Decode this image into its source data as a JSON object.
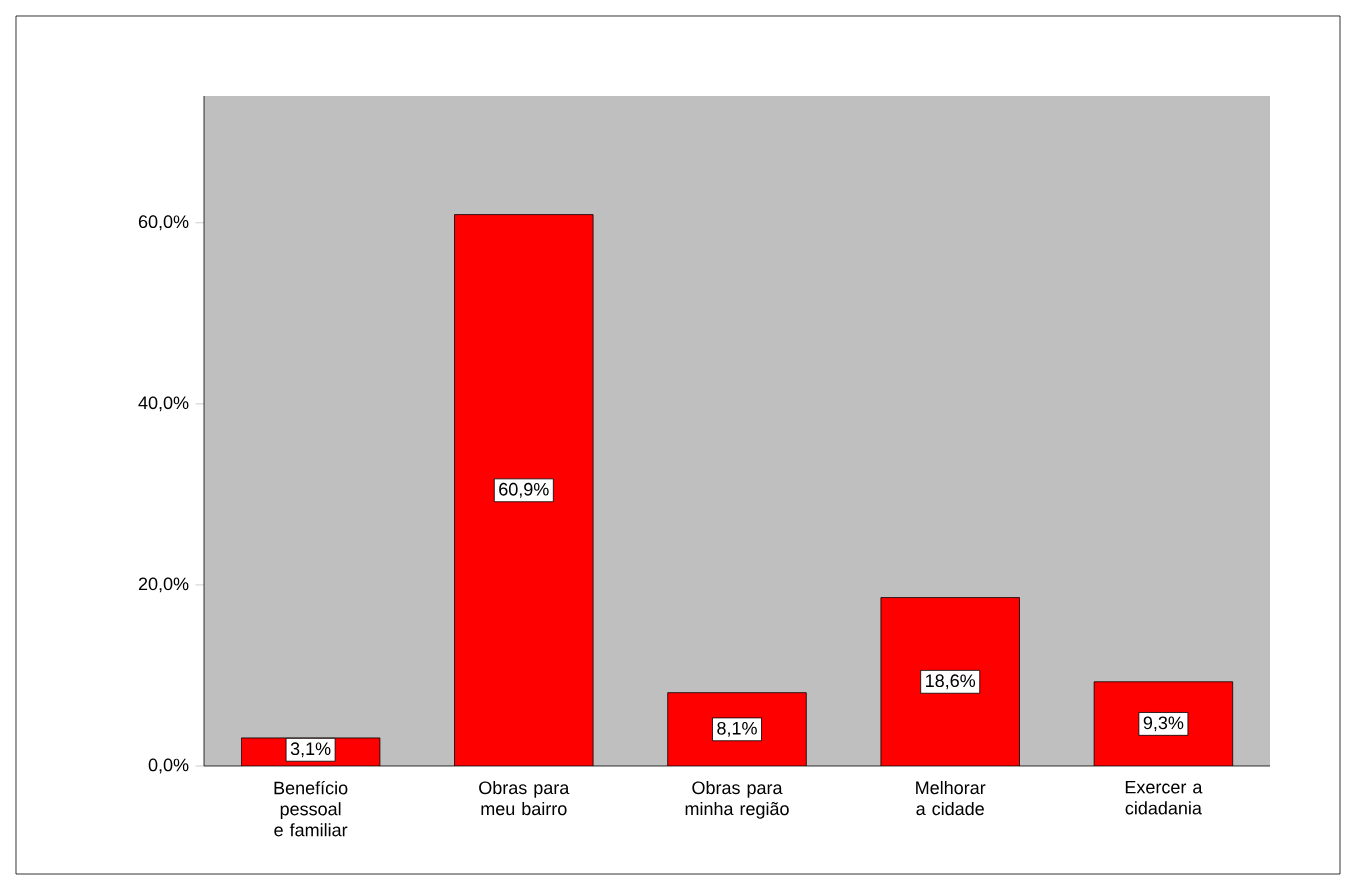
{
  "chart_data": {
    "type": "bar",
    "categories": [
      "Benefício pessoal e familiar",
      "Obras para meu bairro",
      "Obras para minha região",
      "Melhorar a cidade",
      "Exercer a cidadania"
    ],
    "values": [
      3.1,
      60.9,
      8.1,
      18.6,
      9.3
    ],
    "value_labels": [
      "3,1%",
      "60,9%",
      "8,1%",
      "18,6%",
      "9,3%"
    ],
    "color": "#ff0000",
    "ylim": [
      0,
      74
    ],
    "yticks": [
      {
        "value": 0,
        "label": "0,0%"
      },
      {
        "value": 20,
        "label": "20,0%"
      },
      {
        "value": 40,
        "label": "40,0%"
      },
      {
        "value": 60,
        "label": "60,0%"
      }
    ],
    "grid": false
  }
}
